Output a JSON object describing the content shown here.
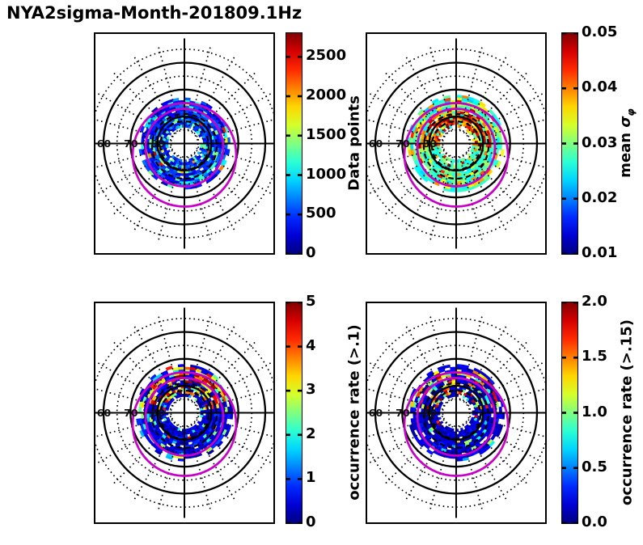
{
  "title": "NYA2sigma-Month-201809.1Hz",
  "figure_type": "2x2 grid of polar (magnetic latitude / MLT) heatmaps with jet colorbars",
  "colors": {
    "background": "#FFFFFF",
    "frame": "#000000",
    "grid": "#000000",
    "auroral_oval": "#C800C8",
    "colormap": "jet"
  },
  "axes": {
    "lat_labels": [
      "60",
      "70",
      "80"
    ],
    "lat_label_values": [
      60,
      70,
      80
    ],
    "solid_circle_lats": [
      60,
      70,
      80
    ],
    "dotted_circle_lats": [
      55,
      65,
      75,
      85
    ],
    "outer_lat": 55,
    "spoke_step_deg": 15,
    "note": "concentric latitude circles with 24 dotted azimuth spokes; crosshair through pole; labels drawn on left half of horizontal axis"
  },
  "overlays": {
    "auroral_oval_circles": [
      {
        "r_deg": 14.4,
        "offset_south_deg": 1.5
      },
      {
        "r_deg": 19.2,
        "offset_south_deg": 4.2
      }
    ],
    "dashed_black_contours": [
      {
        "r_deg": 9.0,
        "offset_south_deg": 0.75
      },
      {
        "r_deg": 12.0,
        "offset_south_deg": 1.05
      }
    ]
  },
  "chart_data": [
    {
      "type": "heatmap",
      "projection": "polar",
      "position": "top-left",
      "colorbar": {
        "label_parts": [
          {
            "t": "Data points"
          }
        ],
        "min": 0,
        "max": 2800,
        "ticks": [
          {
            "v": 0,
            "label": "0"
          },
          {
            "v": 500,
            "label": "500"
          },
          {
            "v": 1000,
            "label": "1000"
          },
          {
            "v": 1500,
            "label": "1500"
          },
          {
            "v": 2000,
            "label": "2000"
          },
          {
            "v": 2500,
            "label": "2500"
          }
        ]
      },
      "data_annulus_lat_range": [
        73,
        84
      ],
      "pattern": "ring of ~1deg x 0.5h cells between lat 73-84; mostly 100-900 counts (navy/blue), ~17% cyan-green cells, rare yellow/orange/red specks, scattered white gaps",
      "render_params": {
        "seed": 11,
        "lat_min": 73,
        "lat_max": 84,
        "gap_prob": 0.05,
        "base": 0.06,
        "spread": 0.23,
        "mid_prob": 0.17,
        "mid_lo": 0.33,
        "mid_hi": 0.52,
        "hi_prob": 0.035,
        "hi_lo": 0.55,
        "hi_hi": 0.95,
        "bands": []
      }
    },
    {
      "type": "heatmap",
      "projection": "polar",
      "position": "top-right",
      "colorbar": {
        "label_parts": [
          {
            "t": "mean "
          },
          {
            "t": "σ",
            "style": "italic"
          },
          {
            "t": "φ",
            "style": "subitalic"
          }
        ],
        "min": 0.01,
        "max": 0.05,
        "ticks": [
          {
            "v": 0.01,
            "label": "0.01"
          },
          {
            "v": 0.02,
            "label": "0.02"
          },
          {
            "v": 0.03,
            "label": "0.03"
          },
          {
            "v": 0.04,
            "label": "0.04"
          },
          {
            "v": 0.05,
            "label": "0.05"
          }
        ]
      },
      "data_annulus_lat_range": [
        72,
        84
      ],
      "pattern": "cyan-green base (~0.022-0.032) with strong orange/red band around lat 77-83 mainly on upper half, scattered dark red patches, few gaps",
      "render_params": {
        "seed": 22,
        "lat_min": 72,
        "lat_max": 84,
        "gap_prob": 0.035,
        "base": 0.31,
        "spread": 0.24,
        "mid_prob": 0.2,
        "mid_lo": 0.55,
        "mid_hi": 0.75,
        "hi_prob": 0.05,
        "hi_lo": 0.78,
        "hi_hi": 1.0,
        "bands": [
          {
            "lat_lo": 77,
            "lat_hi": 83.5,
            "cos_lo": -0.15,
            "cos_hi": 1,
            "prob": 0.68,
            "lo": 0.6,
            "hi": 1.0
          }
        ]
      }
    },
    {
      "type": "heatmap",
      "projection": "polar",
      "position": "bottom-left",
      "colorbar": {
        "label_parts": [
          {
            "t": "occurrence rate (>.1)"
          }
        ],
        "min": 0,
        "max": 5,
        "ticks": [
          {
            "v": 0,
            "label": "0"
          },
          {
            "v": 1,
            "label": "1"
          },
          {
            "v": 2,
            "label": "2"
          },
          {
            "v": 3,
            "label": "3"
          },
          {
            "v": 4,
            "label": "4"
          },
          {
            "v": 5,
            "label": "5"
          }
        ]
      },
      "data_annulus_lat_range": [
        72,
        84
      ],
      "pattern": "mostly dark navy (rate < 0.5); bright red/orange/yellow/green patches concentrated in top sector lat 74-83; sparse cyan/green elsewhere; a few green cells at bottom outer edge",
      "render_params": {
        "seed": 33,
        "lat_min": 72,
        "lat_max": 84,
        "gap_prob": 0.06,
        "base": 0.02,
        "spread": 0.17,
        "mid_prob": 0.11,
        "mid_lo": 0.3,
        "mid_hi": 0.55,
        "hi_prob": 0.02,
        "hi_lo": 0.55,
        "hi_hi": 1.0,
        "bands": [
          {
            "lat_lo": 73.5,
            "lat_hi": 83,
            "cos_lo": 0.1,
            "cos_hi": 1,
            "prob": 0.5,
            "lo": 0.45,
            "hi": 1.0
          },
          {
            "lat_lo": 72,
            "lat_hi": 74,
            "cos_lo": -1,
            "cos_hi": -0.35,
            "prob": 0.3,
            "lo": 0.3,
            "hi": 0.65
          }
        ]
      }
    },
    {
      "type": "heatmap",
      "projection": "polar",
      "position": "bottom-right",
      "colorbar": {
        "label_parts": [
          {
            "t": "occurrence rate (>.15)"
          }
        ],
        "min": 0.0,
        "max": 2.0,
        "ticks": [
          {
            "v": 0.0,
            "label": "0.0"
          },
          {
            "v": 0.5,
            "label": "0.5"
          },
          {
            "v": 1.0,
            "label": "1.0"
          },
          {
            "v": 1.5,
            "label": "1.5"
          },
          {
            "v": 2.0,
            "label": "2.0"
          }
        ]
      },
      "data_annulus_lat_range": [
        72,
        84
      ],
      "pattern": "mostly dark navy; yellow/orange/red/cyan patches in top sector lat 74-83 with white gaps; orange bar near bottom lat ~74; sparse cyan specks elsewhere",
      "render_params": {
        "seed": 44,
        "lat_min": 72,
        "lat_max": 84,
        "gap_prob": 0.085,
        "base": 0.02,
        "spread": 0.14,
        "mid_prob": 0.09,
        "mid_lo": 0.3,
        "mid_hi": 0.55,
        "hi_prob": 0.018,
        "hi_lo": 0.55,
        "hi_hi": 1.0,
        "bands": [
          {
            "lat_lo": 73.5,
            "lat_hi": 83,
            "cos_lo": 0.18,
            "cos_hi": 1,
            "prob": 0.42,
            "lo": 0.45,
            "hi": 1.0
          },
          {
            "lat_lo": 72,
            "lat_hi": 74.2,
            "cos_lo": -1,
            "cos_hi": -0.3,
            "prob": 0.25,
            "lo": 0.3,
            "hi": 0.65
          }
        ]
      }
    }
  ]
}
